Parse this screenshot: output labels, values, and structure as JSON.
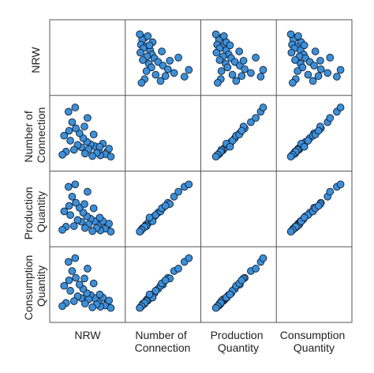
{
  "chart_data": {
    "type": "scatter",
    "title": "",
    "variables": [
      "NRW",
      "Number of Connection",
      "Production Quantity",
      "Consumption Quantity"
    ],
    "row_labels": [
      [
        "NRW"
      ],
      [
        "Number of",
        "Connection"
      ],
      [
        "Production",
        "Quantity"
      ],
      [
        "Consumption",
        "Quantity"
      ]
    ],
    "col_labels": [
      [
        "NRW"
      ],
      [
        "Number of",
        "Connection"
      ],
      [
        "Production",
        "Quantity"
      ],
      [
        "Consumption",
        "Quantity"
      ]
    ],
    "diagonal": "empty",
    "grid": false,
    "axis_ranges": [
      [
        0,
        10
      ],
      [
        0,
        10
      ],
      [
        0,
        10
      ],
      [
        0,
        10
      ]
    ],
    "point_color": "#3d8fd8",
    "point_edge_color": "#0e1e33",
    "series": [
      {
        "values": [
          {
            "NRW": 8.2,
            "Number of Connection": 2.0,
            "Production Quantity": 2.1,
            "Consumption Quantity": 1.9
          },
          {
            "NRW": 7.9,
            "Number of Connection": 1.6,
            "Production Quantity": 1.8,
            "Consumption Quantity": 1.6
          },
          {
            "NRW": 8.5,
            "Number of Connection": 2.5,
            "Production Quantity": 2.6,
            "Consumption Quantity": 2.4
          },
          {
            "NRW": 7.1,
            "Number of Connection": 1.4,
            "Production Quantity": 1.5,
            "Consumption Quantity": 1.4
          },
          {
            "NRW": 6.8,
            "Number of Connection": 2.2,
            "Production Quantity": 2.4,
            "Consumption Quantity": 2.3
          },
          {
            "NRW": 6.5,
            "Number of Connection": 1.8,
            "Production Quantity": 1.9,
            "Consumption Quantity": 1.8
          },
          {
            "NRW": 6.2,
            "Number of Connection": 2.9,
            "Production Quantity": 3.0,
            "Consumption Quantity": 2.8
          },
          {
            "NRW": 5.8,
            "Number of Connection": 1.3,
            "Production Quantity": 1.4,
            "Consumption Quantity": 1.3
          },
          {
            "NRW": 5.5,
            "Number of Connection": 3.2,
            "Production Quantity": 3.4,
            "Consumption Quantity": 3.3
          },
          {
            "NRW": 5.2,
            "Number of Connection": 2.4,
            "Production Quantity": 2.5,
            "Consumption Quantity": 2.6
          },
          {
            "NRW": 4.9,
            "Number of Connection": 3.6,
            "Production Quantity": 3.8,
            "Consumption Quantity": 3.6
          },
          {
            "NRW": 4.6,
            "Number of Connection": 1.7,
            "Production Quantity": 1.9,
            "Consumption Quantity": 1.9
          },
          {
            "NRW": 4.3,
            "Number of Connection": 4.2,
            "Production Quantity": 4.4,
            "Consumption Quantity": 4.3
          },
          {
            "NRW": 4.0,
            "Number of Connection": 2.7,
            "Production Quantity": 2.9,
            "Consumption Quantity": 2.8
          },
          {
            "NRW": 3.7,
            "Number of Connection": 5.0,
            "Production Quantity": 5.2,
            "Consumption Quantity": 5.0
          },
          {
            "NRW": 3.4,
            "Number of Connection": 3.1,
            "Production Quantity": 3.2,
            "Consumption Quantity": 3.1
          },
          {
            "NRW": 3.1,
            "Number of Connection": 5.8,
            "Production Quantity": 6.0,
            "Consumption Quantity": 6.1
          },
          {
            "NRW": 2.8,
            "Number of Connection": 2.3,
            "Production Quantity": 2.2,
            "Consumption Quantity": 2.3
          },
          {
            "NRW": 2.5,
            "Number of Connection": 6.8,
            "Production Quantity": 7.0,
            "Consumption Quantity": 7.2
          },
          {
            "NRW": 2.2,
            "Number of Connection": 3.8,
            "Production Quantity": 4.0,
            "Consumption Quantity": 4.0
          },
          {
            "NRW": 1.9,
            "Number of Connection": 8.5,
            "Production Quantity": 8.6,
            "Consumption Quantity": 8.7
          },
          {
            "NRW": 1.5,
            "Number of Connection": 2.0,
            "Production Quantity": 2.1,
            "Consumption Quantity": 2.0
          },
          {
            "NRW": 1.2,
            "Number of Connection": 4.6,
            "Production Quantity": 4.6,
            "Consumption Quantity": 4.8
          },
          {
            "NRW": 0.9,
            "Number of Connection": 1.5,
            "Production Quantity": 1.6,
            "Consumption Quantity": 1.5
          },
          {
            "NRW": 7.5,
            "Number of Connection": 3.3,
            "Production Quantity": 3.0,
            "Consumption Quantity": 2.9
          },
          {
            "NRW": 5.0,
            "Number of Connection": 7.5,
            "Production Quantity": 7.8,
            "Consumption Quantity": 7.6
          },
          {
            "NRW": 6.0,
            "Number of Connection": 4.8,
            "Production Quantity": 5.1,
            "Consumption Quantity": 5.2
          },
          {
            "NRW": 3.0,
            "Number of Connection": 9.2,
            "Production Quantity": 9.0,
            "Consumption Quantity": 9.3
          },
          {
            "NRW": 8.8,
            "Number of Connection": 1.2,
            "Production Quantity": 1.3,
            "Consumption Quantity": 1.2
          },
          {
            "NRW": 4.5,
            "Number of Connection": 6.1,
            "Production Quantity": 5.8,
            "Consumption Quantity": 6.0
          },
          {
            "NRW": 2.0,
            "Number of Connection": 5.4,
            "Production Quantity": 5.5,
            "Consumption Quantity": 5.7
          },
          {
            "NRW": 7.0,
            "Number of Connection": 2.8,
            "Production Quantity": 3.6,
            "Consumption Quantity": 3.4
          }
        ]
      }
    ]
  }
}
